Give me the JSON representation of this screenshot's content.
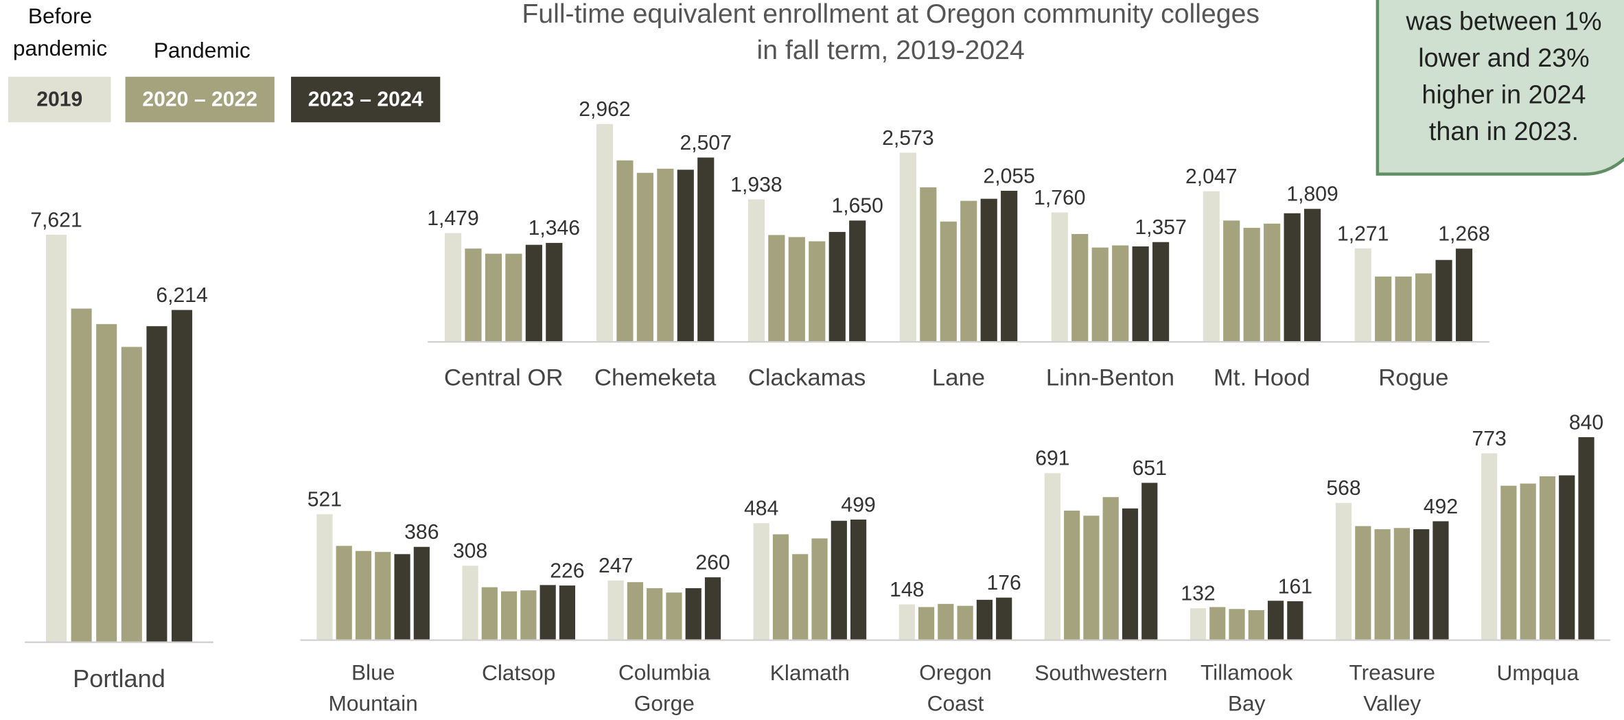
{
  "title": [
    "Full-time equivalent enrollment at Oregon community colleges",
    "in fall term, 2019-2024"
  ],
  "callout": [
    "was between 1%",
    "lower and 23%",
    "higher in 2024",
    "than in 2023."
  ],
  "legend": [
    {
      "heading": [
        "Before",
        "pandemic"
      ],
      "label": "2019",
      "color": "#e0e0d3"
    },
    {
      "heading": [
        "Pandemic"
      ],
      "label": "2020 – 2022",
      "color": "#a4a37e"
    },
    {
      "label": "2023 – 2024",
      "color": "#3d3a2f"
    }
  ],
  "chart_data": [
    {
      "type": "grouped-bar",
      "ylim": [
        0,
        8000
      ],
      "colors": [
        "#e0e0d3",
        "#a4a37e",
        "#a4a37e",
        "#a4a37e",
        "#3d3a2f",
        "#3d3a2f"
      ],
      "groups": [
        {
          "name": "Portland",
          "values": [
            7621,
            6240,
            5950,
            5523,
            5911,
            6214
          ],
          "value_labels": [
            "7,621",
            null,
            null,
            null,
            null,
            "6,214"
          ]
        }
      ]
    },
    {
      "type": "grouped-bar",
      "ylim": [
        0,
        3000
      ],
      "colors": [
        "#e0e0d3",
        "#a4a37e",
        "#a4a37e",
        "#a4a37e",
        "#3d3a2f",
        "#3d3a2f"
      ],
      "groups": [
        {
          "name": "Central OR",
          "values": [
            1479,
            1269,
            1199,
            1199,
            1320,
            1346
          ],
          "value_labels": [
            "1,479",
            null,
            null,
            null,
            null,
            "1,346"
          ]
        },
        {
          "name": "Chemeketa",
          "values": [
            2962,
            2468,
            2299,
            2355,
            2341,
            2507
          ],
          "value_labels": [
            "2,962",
            null,
            null,
            null,
            null,
            "2,507"
          ]
        },
        {
          "name": "Clackamas",
          "values": [
            1938,
            1453,
            1425,
            1368,
            1495,
            1650
          ],
          "value_labels": [
            "1,938",
            null,
            null,
            null,
            null,
            "1,650"
          ]
        },
        {
          "name": "Lane",
          "values": [
            2573,
            2101,
            1636,
            1918,
            1946,
            2055
          ],
          "value_labels": [
            "2,573",
            null,
            null,
            null,
            null,
            "2,055"
          ]
        },
        {
          "name": "Linn-Benton",
          "values": [
            1760,
            1467,
            1283,
            1312,
            1298,
            1357
          ],
          "value_labels": [
            "1,760",
            null,
            null,
            null,
            null,
            "1,357"
          ]
        },
        {
          "name": "Mt. Hood",
          "values": [
            2047,
            1650,
            1551,
            1608,
            1749,
            1809
          ],
          "value_labels": [
            "2,047",
            null,
            null,
            null,
            null,
            "1,809"
          ]
        },
        {
          "name": "Rogue",
          "values": [
            1271,
            889,
            889,
            931,
            1114,
            1268
          ],
          "value_labels": [
            "1,271",
            null,
            null,
            null,
            null,
            "1,268"
          ]
        }
      ]
    },
    {
      "type": "grouped-bar",
      "ylim": [
        0,
        900
      ],
      "colors": [
        "#e0e0d3",
        "#a4a37e",
        "#a4a37e",
        "#a4a37e",
        "#3d3a2f",
        "#3d3a2f"
      ],
      "groups": [
        {
          "name": "Blue Mountain",
          "values": [
            521,
            390,
            369,
            365,
            356,
            386
          ],
          "value_labels": [
            "521",
            null,
            null,
            null,
            null,
            "386"
          ]
        },
        {
          "name": "Clatsop",
          "values": [
            308,
            219,
            202,
            206,
            228,
            226
          ],
          "value_labels": [
            "308",
            null,
            null,
            null,
            null,
            "226"
          ]
        },
        {
          "name": "Columbia Gorge",
          "values": [
            247,
            240,
            215,
            197,
            215,
            260
          ],
          "value_labels": [
            "247",
            null,
            null,
            null,
            null,
            "260"
          ]
        },
        {
          "name": "Klamath",
          "values": [
            484,
            438,
            356,
            421,
            494,
            499
          ],
          "value_labels": [
            "484",
            null,
            null,
            null,
            null,
            "499"
          ]
        },
        {
          "name": "Oregon Coast",
          "values": [
            148,
            137,
            150,
            142,
            167,
            176
          ],
          "value_labels": [
            "148",
            null,
            null,
            null,
            null,
            "176"
          ]
        },
        {
          "name": "Southwestern",
          "values": [
            691,
            536,
            515,
            592,
            545,
            651
          ],
          "value_labels": [
            "691",
            null,
            null,
            null,
            null,
            "651"
          ]
        },
        {
          "name": "Tillamook Bay",
          "values": [
            132,
            137,
            129,
            124,
            163,
            161
          ],
          "value_labels": [
            "132",
            null,
            null,
            null,
            null,
            "161"
          ]
        },
        {
          "name": "Treasure Valley",
          "values": [
            568,
            472,
            459,
            464,
            459,
            492
          ],
          "value_labels": [
            "568",
            null,
            null,
            null,
            null,
            "492"
          ]
        },
        {
          "name": "Umpqua",
          "values": [
            773,
            639,
            648,
            678,
            682,
            840
          ],
          "value_labels": [
            "773",
            null,
            null,
            null,
            null,
            "840"
          ]
        }
      ]
    }
  ]
}
